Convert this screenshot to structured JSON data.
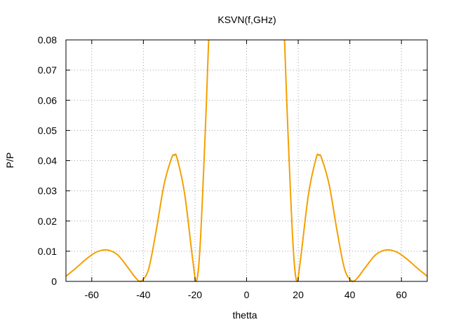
{
  "chart_data": {
    "type": "line",
    "title": "KSVN(f,GHz)",
    "xlabel": "thetta",
    "ylabel": "P/P",
    "xlim": [
      -70,
      70
    ],
    "ylim": [
      0,
      0.08
    ],
    "xticks": [
      -60,
      -40,
      -20,
      0,
      20,
      40,
      60
    ],
    "xtick_labels": [
      "-60",
      "-40",
      "-20",
      "0",
      "20",
      "40",
      "60"
    ],
    "yticks": [
      0,
      0.01,
      0.02,
      0.03,
      0.04,
      0.05,
      0.06,
      0.07,
      0.08
    ],
    "ytick_labels": [
      "0",
      "0.01",
      "0.02",
      "0.03",
      "0.04",
      "0.05",
      "0.06",
      "0.07",
      "0.08"
    ],
    "grid": true,
    "legend": "none",
    "series": [
      {
        "color": "#f5a000",
        "x": [
          -70,
          -66,
          -62,
          -58,
          -54,
          -50,
          -46,
          -43,
          -41,
          -38,
          -35,
          -32,
          -29,
          -28,
          -27,
          -24,
          -21,
          -19.5,
          -18,
          -16,
          -14.7,
          14.7,
          16,
          18,
          19.5,
          21,
          24,
          27,
          28,
          29,
          32,
          35,
          38,
          41,
          43,
          46,
          50,
          54,
          58,
          62,
          66,
          70
        ],
        "y": [
          0.0017,
          0.0045,
          0.0075,
          0.0098,
          0.0104,
          0.0088,
          0.0046,
          0.0012,
          0.0,
          0.004,
          0.017,
          0.032,
          0.041,
          0.0417,
          0.041,
          0.029,
          0.008,
          0.0,
          0.012,
          0.05,
          0.08,
          0.08,
          0.05,
          0.012,
          0.0,
          0.008,
          0.029,
          0.041,
          0.0417,
          0.041,
          0.032,
          0.017,
          0.004,
          0.0,
          0.0012,
          0.0046,
          0.0088,
          0.0104,
          0.0098,
          0.0075,
          0.0045,
          0.0017
        ]
      }
    ]
  }
}
